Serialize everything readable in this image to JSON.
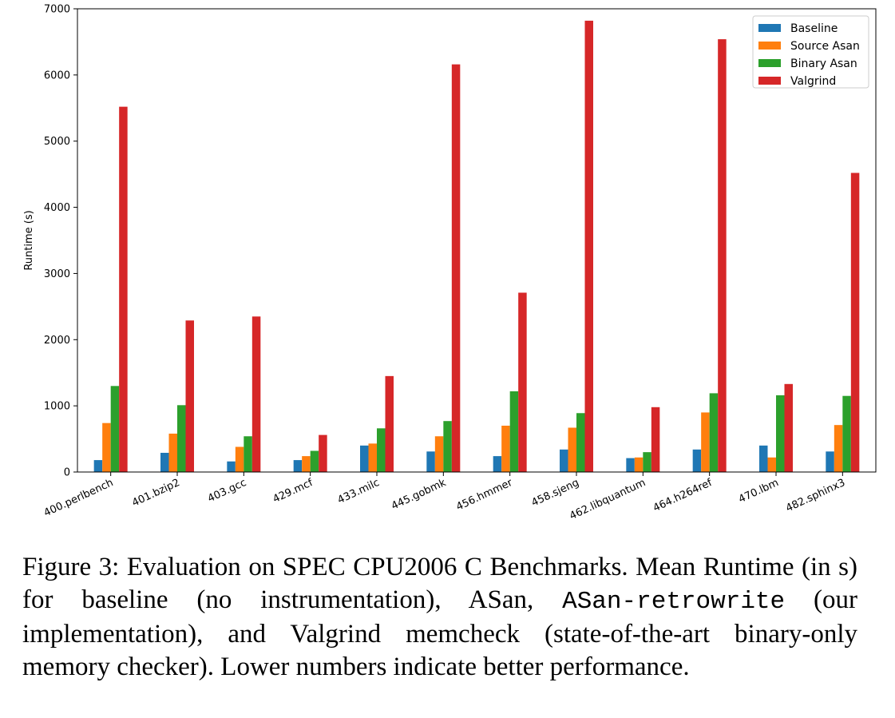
{
  "chart_data": {
    "type": "bar",
    "categories": [
      "400.perlbench",
      "401.bzip2",
      "403.gcc",
      "429.mcf",
      "433.milc",
      "445.gobmk",
      "456.hmmer",
      "458.sjeng",
      "462.libquantum",
      "464.h264ref",
      "470.lbm",
      "482.sphinx3"
    ],
    "series": [
      {
        "name": "Baseline",
        "color": "#1f77b4",
        "values": [
          180,
          290,
          160,
          180,
          400,
          310,
          240,
          340,
          210,
          340,
          400,
          310
        ]
      },
      {
        "name": "Source Asan",
        "color": "#ff7f0e",
        "values": [
          740,
          580,
          380,
          240,
          430,
          540,
          700,
          670,
          220,
          900,
          220,
          710
        ]
      },
      {
        "name": "Binary Asan",
        "color": "#2ca02c",
        "values": [
          1300,
          1010,
          540,
          320,
          660,
          770,
          1220,
          890,
          300,
          1190,
          1160,
          1150
        ]
      },
      {
        "name": "Valgrind",
        "color": "#d62728",
        "values": [
          5520,
          2290,
          2350,
          560,
          1450,
          6160,
          2710,
          6820,
          980,
          6540,
          1330,
          4520
        ]
      }
    ],
    "title": "",
    "xlabel": "",
    "ylabel": "Runtime (s)",
    "ylim": [
      0,
      7000
    ],
    "yticks": [
      0,
      1000,
      2000,
      3000,
      4000,
      5000,
      6000,
      7000
    ],
    "grid": false,
    "legend_position": "top-right"
  },
  "caption": {
    "part1": "Figure 3: Evaluation on SPEC CPU2006 C Benchmarks. Mean Runtime (in s) for baseline (no instrumentation), ASan, ",
    "code": "ASan-retrowrite",
    "part2": " (our implementation), and Valgrind memcheck (state-of-the-art binary-only memory checker). Lower numbers indicate better performance."
  }
}
